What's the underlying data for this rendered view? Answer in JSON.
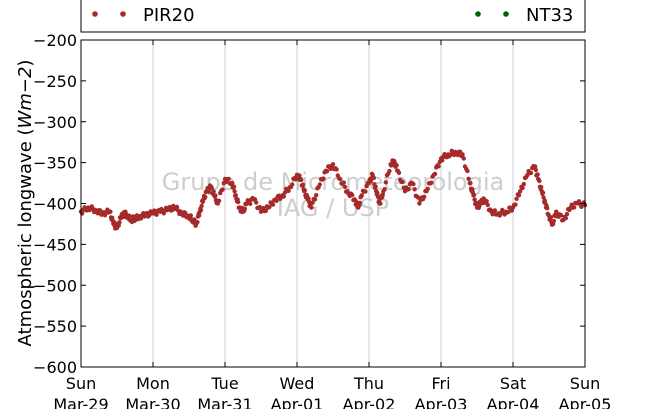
{
  "chart_data": {
    "type": "scatter",
    "title": "",
    "ylabel": "Atmospheric longwave",
    "ylabel_unit": "Wm−2",
    "xlabel": "",
    "ylim": [
      -600,
      -200
    ],
    "yticks": [
      -200,
      -250,
      -300,
      -350,
      -400,
      -450,
      -500,
      -550,
      -600
    ],
    "ytick_labels": [
      "−200",
      "−250",
      "−300",
      "−350",
      "−400",
      "−450",
      "−500",
      "−550",
      "−600"
    ],
    "xlim": [
      "2015-03-29",
      "2015-04-05"
    ],
    "xticks": [
      {
        "day": "Sun",
        "date": "Mar-29"
      },
      {
        "day": "Mon",
        "date": "Mar-30"
      },
      {
        "day": "Tue",
        "date": "Mar-31"
      },
      {
        "day": "Wed",
        "date": "Apr-01"
      },
      {
        "day": "Thu",
        "date": "Apr-02"
      },
      {
        "day": "Fri",
        "date": "Apr-03"
      },
      {
        "day": "Sat",
        "date": "Apr-04"
      },
      {
        "day": "Sun",
        "date": "Apr-05"
      }
    ],
    "grid": "vertical",
    "legend_placement": "top",
    "colors": {
      "PIR20": "#a52a2a",
      "NT33": "#006400"
    },
    "watermark": [
      "Grupo de Micrometeorologia",
      "IAG / USP"
    ],
    "series": [
      {
        "name": "PIR20",
        "x_days": [
          0.0,
          0.1,
          0.2,
          0.3,
          0.4,
          0.45,
          0.5,
          0.55,
          0.6,
          0.65,
          0.7,
          0.75,
          0.8,
          0.9,
          1.0,
          1.1,
          1.2,
          1.3,
          1.4,
          1.5,
          1.55,
          1.6,
          1.65,
          1.7,
          1.75,
          1.8,
          1.85,
          1.9,
          2.0,
          2.1,
          2.15,
          2.2,
          2.25,
          2.3,
          2.4,
          2.5,
          2.6,
          2.7,
          2.8,
          2.9,
          3.0,
          3.05,
          3.1,
          3.15,
          3.2,
          3.3,
          3.4,
          3.5,
          3.6,
          3.7,
          3.8,
          3.85,
          3.9,
          4.0,
          4.05,
          4.1,
          4.15,
          4.2,
          4.3,
          4.35,
          4.4,
          4.5,
          4.6,
          4.7,
          4.8,
          4.9,
          5.0,
          5.1,
          5.2,
          5.3,
          5.4,
          5.45,
          5.5,
          5.55,
          5.6,
          5.7,
          5.8,
          5.9,
          6.0,
          6.1,
          6.2,
          6.3,
          6.35,
          6.4,
          6.45,
          6.5,
          6.55,
          6.6,
          6.7,
          6.8,
          6.9,
          7.0
        ],
        "y": [
          -410,
          -405,
          -408,
          -412,
          -410,
          -425,
          -430,
          -418,
          -412,
          -415,
          -420,
          -418,
          -416,
          -414,
          -412,
          -410,
          -408,
          -405,
          -412,
          -415,
          -420,
          -425,
          -410,
          -395,
          -385,
          -380,
          -390,
          -400,
          -370,
          -375,
          -390,
          -405,
          -410,
          -400,
          -395,
          -410,
          -405,
          -395,
          -390,
          -380,
          -365,
          -370,
          -385,
          -395,
          -405,
          -380,
          -360,
          -352,
          -370,
          -385,
          -395,
          -405,
          -390,
          -375,
          -365,
          -385,
          -400,
          -385,
          -352,
          -348,
          -360,
          -385,
          -375,
          -400,
          -385,
          -365,
          -345,
          -340,
          -337,
          -340,
          -375,
          -390,
          -405,
          -400,
          -395,
          -410,
          -412,
          -410,
          -405,
          -385,
          -365,
          -355,
          -370,
          -385,
          -400,
          -415,
          -425,
          -410,
          -420,
          -405,
          -400,
          -402
        ]
      },
      {
        "name": "NT33",
        "x_days": [],
        "y": []
      }
    ]
  }
}
